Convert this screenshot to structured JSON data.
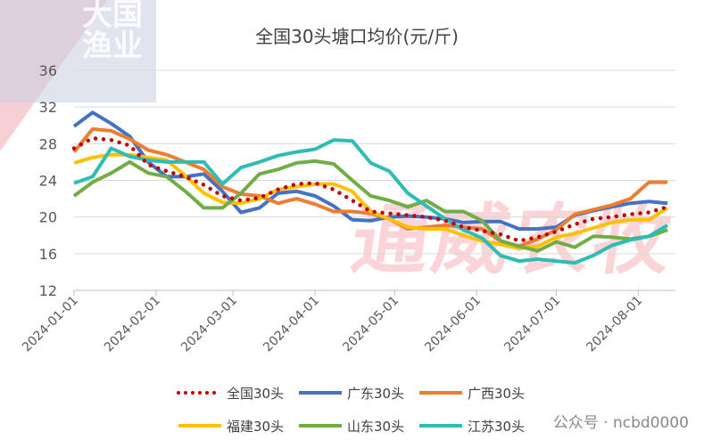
{
  "watermarks": {
    "logo": "大国渔业",
    "brand": "通威农牧",
    "account": "公众号 · ncbd0000"
  },
  "chart_data": {
    "type": "line",
    "title": "全国30头塘口均价(元/斤)",
    "xlabel": "",
    "ylabel": "",
    "ylim": [
      12,
      36
    ],
    "yticks": [
      "12",
      "16",
      "20",
      "24",
      "28",
      "32",
      "36"
    ],
    "xticks": [
      "2024-01-01",
      "2024-02-01",
      "2024-03-01",
      "2024-04-01",
      "2024-05-01",
      "2024-06-01",
      "2024-07-01",
      "2024-08-01"
    ],
    "x_start": "2024-01-01",
    "x_step_days": 7,
    "x_end": "2024-08-15",
    "grid": true,
    "legend_position": "bottom",
    "series": [
      {
        "name": "全国30头",
        "color": "#c00000",
        "dotted": true,
        "values": [
          27.5,
          28.6,
          28.4,
          27.8,
          25.7,
          25.0,
          24.4,
          23.5,
          22.3,
          21.8,
          22.1,
          23.0,
          23.6,
          23.7,
          23.0,
          21.8,
          20.6,
          20.4,
          20.2,
          20.0,
          19.6,
          18.9,
          18.5,
          18.1,
          17.4,
          17.8,
          18.4,
          19.2,
          19.8,
          20.0,
          20.3,
          20.5,
          21.1
        ]
      },
      {
        "name": "广东30头",
        "color": "#4472c4",
        "values": [
          29.9,
          31.4,
          30.2,
          28.8,
          26.0,
          24.4,
          24.4,
          24.7,
          22.8,
          20.5,
          21.0,
          22.6,
          22.8,
          22.3,
          21.2,
          19.7,
          19.6,
          20.0,
          20.1,
          20.0,
          19.8,
          19.4,
          19.5,
          19.5,
          18.7,
          18.7,
          18.9,
          20.2,
          20.7,
          21.1,
          21.5,
          21.7,
          21.5
        ]
      },
      {
        "name": "广西30头",
        "color": "#ed7d31",
        "values": [
          27.1,
          29.6,
          29.4,
          28.5,
          27.3,
          26.8,
          26.0,
          25.2,
          23.3,
          22.5,
          22.3,
          21.5,
          22.0,
          21.4,
          20.6,
          20.6,
          20.4,
          19.8,
          18.7,
          18.9,
          19.1,
          18.9,
          18.7,
          17.4,
          16.8,
          17.6,
          18.6,
          20.3,
          20.8,
          21.3,
          22.0,
          23.8,
          23.8
        ]
      },
      {
        "name": "福建30头",
        "color": "#ffc000",
        "values": [
          25.9,
          26.5,
          26.8,
          26.8,
          26.5,
          26.2,
          24.5,
          22.6,
          21.6,
          21.5,
          22.0,
          23.0,
          23.3,
          23.6,
          23.6,
          22.8,
          20.6,
          19.8,
          18.9,
          18.7,
          18.7,
          18.0,
          17.4,
          17.0,
          16.6,
          16.8,
          17.8,
          18.2,
          18.8,
          19.4,
          19.7,
          19.7,
          21.0
        ]
      },
      {
        "name": "山东30头",
        "color": "#70ad47",
        "values": [
          22.3,
          23.8,
          24.8,
          26.0,
          24.8,
          24.4,
          22.8,
          21.0,
          21.0,
          22.6,
          24.7,
          25.2,
          25.9,
          26.1,
          25.8,
          24.0,
          22.3,
          21.8,
          21.1,
          21.8,
          20.6,
          20.6,
          19.6,
          17.4,
          16.8,
          16.3,
          17.3,
          16.7,
          17.9,
          17.8,
          17.6,
          17.9,
          18.6
        ]
      },
      {
        "name": "江苏30头",
        "color": "#2fbcb4",
        "values": [
          23.7,
          24.4,
          27.5,
          26.6,
          26.2,
          26.0,
          26.0,
          26.0,
          23.6,
          25.4,
          26.0,
          26.7,
          27.1,
          27.4,
          28.4,
          28.3,
          25.9,
          25.0,
          22.6,
          21.2,
          19.8,
          18.6,
          17.7,
          15.8,
          15.2,
          15.4,
          15.2,
          15.0,
          15.8,
          16.9,
          17.5,
          17.9,
          19.1
        ]
      }
    ]
  }
}
